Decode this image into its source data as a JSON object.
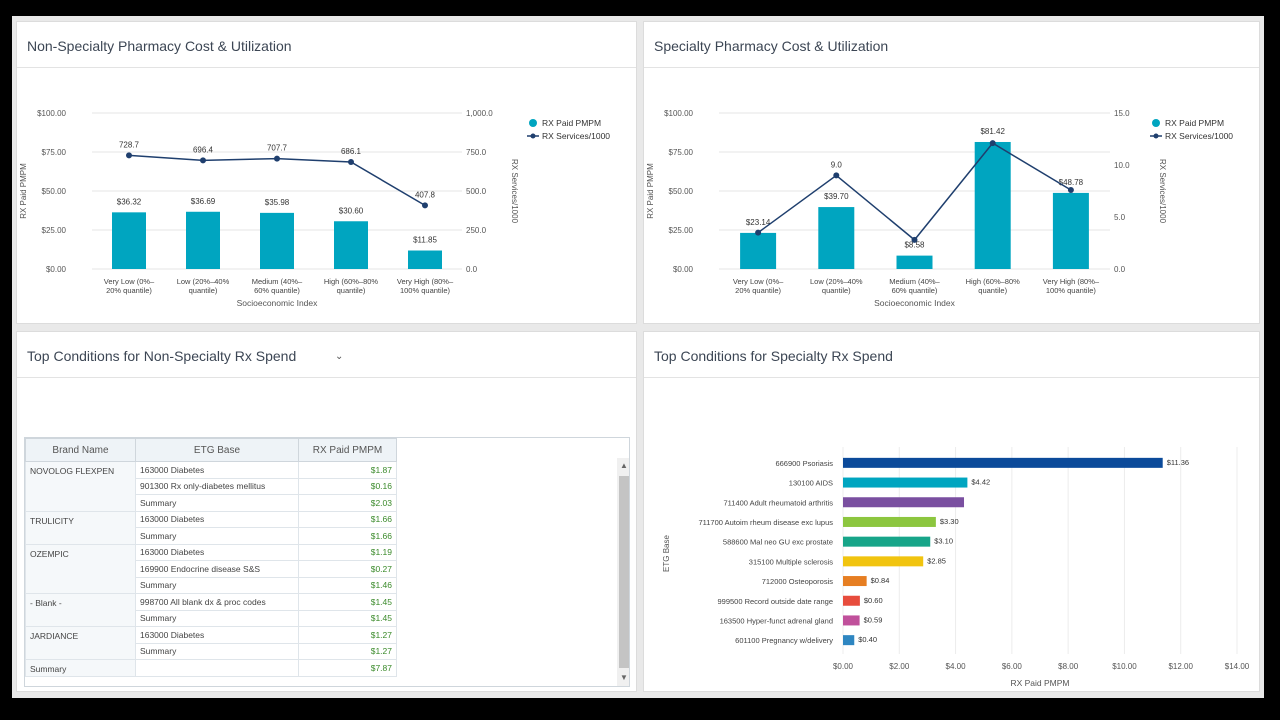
{
  "panels": {
    "nonspec_chart": {
      "title": "Non-Specialty Pharmacy Cost & Utilization"
    },
    "spec_chart": {
      "title": "Specialty Pharmacy Cost & Utilization"
    },
    "nonspec_table": {
      "title": "Top Conditions for Non-Specialty Rx Spend"
    },
    "spec_bar": {
      "title": "Top Conditions for Specialty Rx Spend"
    }
  },
  "colors": {
    "bar": "#00a5c0",
    "line": "#1f3f6e",
    "psoriasis": "#0b4a9a",
    "aids": "#00a5c0",
    "arthritis": "#7a4fa0",
    "lupus": "#8cc63f",
    "prostate": "#17a589",
    "ms": "#f1c40f",
    "osteo": "#e67e22",
    "record": "#e74c3c",
    "adrenal": "#c0509b",
    "pregnancy": "#2e86c1"
  },
  "chart_data": [
    {
      "type": "bar",
      "title": "Non-Specialty Pharmacy Cost & Utilization",
      "xlabel": "Socioeconomic Index",
      "ylabel": "RX Paid PMPM",
      "y2label": "RX Services/1000",
      "categories": [
        [
          "Very Low (0%–",
          "20% quantile)"
        ],
        [
          "Low (20%–40%",
          "quantile)"
        ],
        [
          "Medium (40%–",
          "60% quantile)"
        ],
        [
          "High (60%–80%",
          "quantile)"
        ],
        [
          "Very High (80%–",
          "100% quantile)"
        ]
      ],
      "yticks": [
        "$0.00",
        "$25.00",
        "$50.00",
        "$75.00",
        "$100.00"
      ],
      "y2ticks": [
        "0.0",
        "250.0",
        "500.0",
        "750.0",
        "1,000.0"
      ],
      "ylim": [
        0,
        100
      ],
      "y2lim": [
        0,
        1000
      ],
      "series": [
        {
          "name": "RX Paid PMPM",
          "type": "bar",
          "values": [
            36.32,
            36.69,
            35.98,
            30.6,
            11.85
          ],
          "labels": [
            "$36.32",
            "$36.69",
            "$35.98",
            "$30.60",
            "$11.85"
          ]
        },
        {
          "name": "RX Services/1000",
          "type": "line",
          "values": [
            728.7,
            696.4,
            707.7,
            686.1,
            407.8
          ],
          "labels": [
            "728.7",
            "696.4",
            "707.7",
            "686.1",
            "407.8"
          ]
        }
      ],
      "legend": "top-right"
    },
    {
      "type": "bar",
      "title": "Specialty Pharmacy Cost & Utilization",
      "xlabel": "Socioeconomic Index",
      "ylabel": "RX Paid PMPM",
      "y2label": "RX Services/1000",
      "categories": [
        [
          "Very Low (0%–",
          "20% quantile)"
        ],
        [
          "Low (20%–40%",
          "quantile)"
        ],
        [
          "Medium (40%–",
          "60% quantile)"
        ],
        [
          "High (60%–80%",
          "quantile)"
        ],
        [
          "Very High (80%–",
          "100% quantile)"
        ]
      ],
      "yticks": [
        "$0.00",
        "$25.00",
        "$50.00",
        "$75.00",
        "$100.00"
      ],
      "y2ticks": [
        "0.0",
        "5.0",
        "10.0",
        "15.0"
      ],
      "ylim": [
        0,
        100
      ],
      "y2lim": [
        0,
        15
      ],
      "series": [
        {
          "name": "RX Paid PMPM",
          "type": "bar",
          "values": [
            23.14,
            39.7,
            8.58,
            81.42,
            48.78
          ],
          "labels": [
            "$23.14",
            "$39.70",
            "$8.58",
            "$81.42",
            "$48.78"
          ]
        },
        {
          "name": "RX Services/1000",
          "type": "line",
          "values": [
            3.5,
            9.0,
            2.8,
            12.1,
            7.6
          ],
          "labels": [
            "",
            "9.0",
            "",
            "",
            ""
          ]
        }
      ],
      "legend": "top-right"
    },
    {
      "type": "bar",
      "orientation": "horizontal",
      "title": "Top Conditions for Specialty Rx Spend",
      "xlabel": "RX Paid PMPM",
      "ylabel": "ETG Base",
      "xlim": [
        0,
        14
      ],
      "xticks": [
        "$0.00",
        "$2.00",
        "$4.00",
        "$6.00",
        "$8.00",
        "$10.00",
        "$12.00",
        "$14.00"
      ],
      "categories": [
        "666900 Psoriasis",
        "130100 AIDS",
        "711400 Adult rheumatoid arthritis",
        "711700 Autoim rheum disease exc lupus",
        "588600 Mal neo GU exc prostate",
        "315100 Multiple sclerosis",
        "712000 Osteoporosis",
        "999500 Record outside date range",
        "163500 Hyper-funct adrenal gland",
        "601100 Pregnancy w/delivery"
      ],
      "values": [
        11.36,
        4.42,
        4.3,
        3.3,
        3.1,
        2.85,
        0.84,
        0.6,
        0.59,
        0.4
      ],
      "labels": [
        "$11.36",
        "$4.42",
        "",
        "$3.30",
        "$3.10",
        "$2.85",
        "$0.84",
        "$0.60",
        "$0.59",
        "$0.40"
      ],
      "bar_colors": [
        "psoriasis",
        "aids",
        "arthritis",
        "lupus",
        "prostate",
        "ms",
        "osteo",
        "record",
        "adrenal",
        "pregnancy"
      ]
    }
  ],
  "table": {
    "headers": [
      "Brand Name",
      "ETG Base",
      "RX Paid PMPM"
    ],
    "groups": [
      {
        "brand": "NOVOLOG FLEXPEN",
        "rows": [
          [
            "163000 Diabetes",
            "$1.87"
          ],
          [
            "901300 Rx only-diabetes mellitus",
            "$0.16"
          ],
          [
            "Summary",
            "$2.03"
          ]
        ]
      },
      {
        "brand": "TRULICITY",
        "rows": [
          [
            "163000 Diabetes",
            "$1.66"
          ],
          [
            "Summary",
            "$1.66"
          ]
        ]
      },
      {
        "brand": "OZEMPIC",
        "rows": [
          [
            "163000 Diabetes",
            "$1.19"
          ],
          [
            "169900 Endocrine disease S&S",
            "$0.27"
          ],
          [
            "Summary",
            "$1.46"
          ]
        ]
      },
      {
        "brand": "- Blank -",
        "rows": [
          [
            "998700 All blank dx & proc codes",
            "$1.45"
          ],
          [
            "Summary",
            "$1.45"
          ]
        ]
      },
      {
        "brand": "JARDIANCE",
        "rows": [
          [
            "163000 Diabetes",
            "$1.27"
          ],
          [
            "Summary",
            "$1.27"
          ]
        ]
      }
    ],
    "grand_total": {
      "label": "Summary",
      "value": "$7.87"
    }
  }
}
